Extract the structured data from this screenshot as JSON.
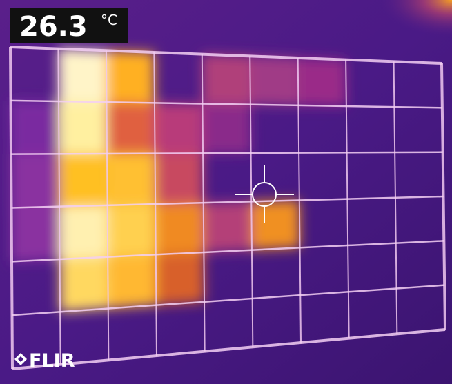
{
  "reading": {
    "value": 26.3,
    "unit": "°C"
  },
  "brand": "FLIR"
}
